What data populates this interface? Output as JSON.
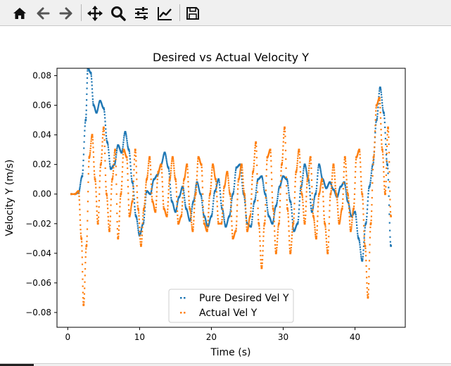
{
  "toolbar": {
    "buttons": [
      {
        "name": "home-button",
        "icon": "home-icon"
      },
      {
        "name": "back-button",
        "icon": "arrow-left-icon"
      },
      {
        "name": "forward-button",
        "icon": "arrow-right-icon"
      },
      {
        "name": "pan-button",
        "icon": "move-icon"
      },
      {
        "name": "zoom-button",
        "icon": "magnifier-icon"
      },
      {
        "name": "configure-subplots-button",
        "icon": "sliders-icon"
      },
      {
        "name": "edit-axis-button",
        "icon": "line-chart-icon"
      },
      {
        "name": "save-button",
        "icon": "floppy-disk-icon"
      }
    ]
  },
  "colors": {
    "desired": "#1f77b4",
    "actual": "#ff7f0e",
    "axes": "#000000",
    "toolbar_bg": "#f0f0f0"
  },
  "chart_data": {
    "type": "scatter",
    "title": "Desired vs Actual Velocity Y",
    "xlabel": "Time (s)",
    "ylabel": "Velocity Y (m/s)",
    "xlim": [
      -1.5,
      47
    ],
    "ylim": [
      -0.09,
      0.085
    ],
    "xticks": [
      0,
      10,
      20,
      30,
      40
    ],
    "xtick_labels": [
      "0",
      "10",
      "20",
      "30",
      "40"
    ],
    "yticks": [
      -0.08,
      -0.06,
      -0.04,
      -0.02,
      0.0,
      0.02,
      0.04,
      0.06,
      0.08
    ],
    "ytick_labels": [
      "−0.08",
      "−0.06",
      "−0.04",
      "−0.02",
      "0.00",
      "0.02",
      "0.04",
      "0.06",
      "0.08"
    ],
    "grid": false,
    "legend_position": "lower center",
    "series": [
      {
        "name": "Pure Desired Vel Y",
        "x": [
          0.5,
          1.0,
          1.5,
          2.0,
          2.5,
          2.8,
          3.2,
          3.6,
          4.0,
          4.5,
          5.0,
          5.5,
          6.0,
          6.5,
          7.0,
          7.5,
          8.0,
          8.5,
          9.0,
          9.5,
          10.0,
          10.5,
          11.0,
          11.5,
          12.0,
          12.5,
          13.0,
          13.5,
          14.0,
          14.5,
          15.0,
          15.5,
          16.0,
          16.5,
          17.0,
          17.5,
          18.0,
          18.5,
          19.0,
          19.5,
          20.0,
          20.5,
          21.0,
          21.5,
          22.0,
          22.5,
          23.0,
          23.5,
          24.0,
          24.5,
          25.0,
          25.5,
          26.0,
          26.5,
          27.0,
          27.5,
          28.0,
          28.5,
          29.0,
          29.5,
          30.0,
          30.5,
          31.0,
          31.5,
          32.0,
          32.5,
          33.0,
          33.5,
          34.0,
          34.5,
          35.0,
          35.5,
          36.0,
          36.5,
          37.0,
          37.5,
          38.0,
          38.5,
          39.0,
          39.5,
          40.0,
          40.5,
          41.0,
          41.5,
          42.0,
          42.5,
          43.0,
          43.5,
          44.0,
          44.5,
          45.0
        ],
        "y": [
          0.0,
          0.0,
          0.001,
          0.012,
          0.05,
          0.085,
          0.082,
          0.06,
          0.055,
          0.063,
          0.058,
          0.035,
          0.017,
          0.02,
          0.033,
          0.028,
          0.042,
          0.03,
          0.008,
          -0.015,
          -0.028,
          -0.02,
          0.002,
          0.0,
          0.01,
          0.013,
          0.02,
          0.028,
          0.018,
          -0.005,
          -0.012,
          -0.002,
          0.005,
          -0.01,
          -0.018,
          -0.005,
          0.008,
          0.0,
          -0.015,
          -0.022,
          -0.015,
          0.002,
          0.01,
          -0.01,
          -0.022,
          -0.015,
          0.0,
          0.018,
          0.02,
          0.0,
          -0.02,
          -0.022,
          -0.005,
          0.01,
          0.012,
          0.0,
          -0.015,
          -0.02,
          -0.008,
          0.005,
          0.012,
          0.01,
          -0.005,
          -0.025,
          -0.02,
          0.005,
          0.02,
          0.01,
          -0.012,
          0.0,
          0.02,
          0.01,
          0.004,
          0.008,
          0.003,
          -0.002,
          0.005,
          0.008,
          -0.005,
          -0.015,
          -0.012,
          -0.03,
          -0.045,
          -0.02,
          0.005,
          0.02,
          0.05,
          0.072,
          0.055,
          0.02,
          -0.035
        ]
      },
      {
        "name": "Actual Vel Y",
        "x": [
          0.5,
          1.0,
          1.5,
          1.9,
          2.2,
          2.6,
          3.0,
          3.4,
          3.8,
          4.2,
          4.6,
          5.0,
          5.4,
          5.8,
          6.2,
          6.6,
          7.0,
          7.4,
          7.8,
          8.2,
          8.6,
          9.0,
          9.4,
          9.8,
          10.2,
          10.6,
          11.0,
          11.4,
          11.8,
          12.2,
          12.6,
          13.0,
          13.4,
          13.8,
          14.2,
          14.6,
          15.0,
          15.4,
          15.8,
          16.2,
          16.6,
          17.0,
          17.4,
          17.8,
          18.2,
          18.6,
          19.0,
          19.4,
          19.8,
          20.2,
          20.6,
          21.0,
          21.4,
          21.8,
          22.2,
          22.6,
          23.0,
          23.4,
          23.8,
          24.2,
          24.6,
          25.0,
          25.4,
          25.8,
          26.2,
          26.6,
          27.0,
          27.4,
          27.8,
          28.2,
          28.6,
          29.0,
          29.4,
          29.8,
          30.2,
          30.6,
          31.0,
          31.4,
          31.8,
          32.2,
          32.6,
          33.0,
          33.4,
          33.8,
          34.2,
          34.6,
          35.0,
          35.4,
          35.8,
          36.2,
          36.6,
          37.0,
          37.4,
          37.8,
          38.2,
          38.6,
          39.0,
          39.4,
          39.8,
          40.2,
          40.6,
          41.0,
          41.4,
          41.8,
          42.2,
          42.6,
          43.0,
          43.4,
          43.8,
          44.2,
          44.6,
          45.0
        ],
        "y": [
          0.0,
          0.0,
          0.002,
          -0.03,
          -0.075,
          -0.035,
          0.025,
          0.04,
          0.01,
          -0.02,
          0.02,
          0.045,
          0.0,
          -0.025,
          0.01,
          0.03,
          -0.03,
          0.0,
          0.03,
          0.025,
          -0.015,
          -0.005,
          0.03,
          -0.01,
          -0.035,
          -0.01,
          0.01,
          0.025,
          -0.005,
          -0.012,
          0.015,
          0.02,
          -0.01,
          -0.015,
          0.01,
          0.025,
          0.01,
          -0.02,
          -0.015,
          0.01,
          0.02,
          -0.01,
          -0.025,
          0.0,
          0.025,
          0.02,
          -0.02,
          -0.025,
          0.0,
          0.02,
          0.01,
          -0.02,
          -0.02,
          0.005,
          0.015,
          0.0,
          -0.03,
          -0.025,
          0.01,
          0.02,
          0.0,
          -0.025,
          -0.015,
          0.015,
          0.035,
          -0.02,
          -0.05,
          -0.02,
          0.025,
          0.03,
          -0.01,
          -0.04,
          -0.02,
          0.02,
          0.045,
          -0.01,
          -0.04,
          -0.02,
          0.015,
          0.03,
          0.0,
          -0.02,
          0.01,
          0.025,
          -0.015,
          -0.03,
          0.0,
          0.01,
          -0.02,
          -0.04,
          0.0,
          0.02,
          0.0,
          -0.02,
          -0.01,
          0.025,
          0.0,
          -0.025,
          -0.01,
          0.025,
          0.03,
          0.0,
          -0.035,
          -0.07,
          -0.02,
          0.025,
          0.06,
          0.065,
          0.03,
          0.0,
          0.045,
          -0.015
        ]
      }
    ]
  }
}
